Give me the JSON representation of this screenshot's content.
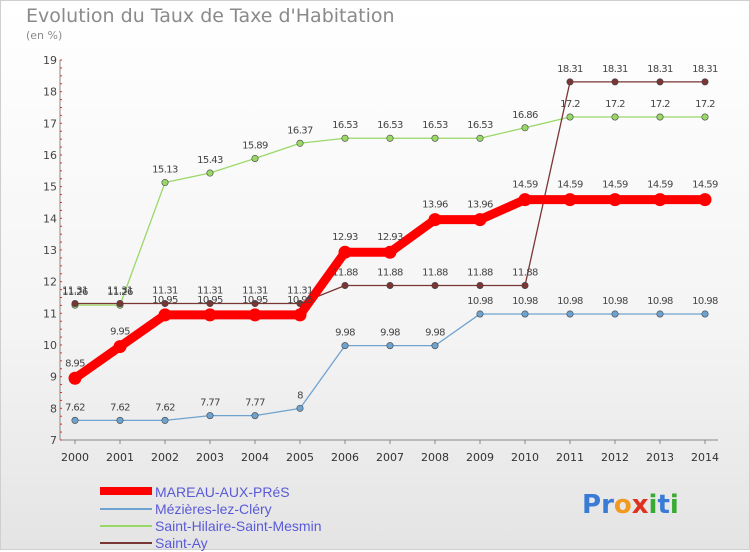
{
  "title": "Evolution du Taux de Taxe d'Habitation",
  "unit_label": "(en %)",
  "logo": {
    "text": "Proxiti",
    "letters": [
      {
        "ch": "P",
        "color": "#3a7bd5"
      },
      {
        "ch": "r",
        "color": "#3a7bd5"
      },
      {
        "ch": "o",
        "color": "#f29a1f"
      },
      {
        "ch": "x",
        "color": "#e0301e"
      },
      {
        "ch": "i",
        "color": "#3aaa35"
      },
      {
        "ch": "t",
        "color": "#3a7bd5"
      },
      {
        "ch": "i",
        "color": "#3aaa35"
      }
    ]
  },
  "chart_data": {
    "type": "line",
    "title": "Evolution du Taux de Taxe d'Habitation",
    "ylabel": "(en %)",
    "ylim": [
      7,
      19
    ],
    "yticks": [
      "7",
      "8",
      "9",
      "10",
      "11",
      "12",
      "13",
      "14",
      "15",
      "16",
      "17",
      "18",
      "19"
    ],
    "categories": [
      "2000",
      "2001",
      "2002",
      "2003",
      "2004",
      "2005",
      "2006",
      "2007",
      "2008",
      "2009",
      "2010",
      "2011",
      "2012",
      "2013",
      "2014"
    ],
    "grid": false,
    "legend_position": "bottom-left",
    "series": [
      {
        "name": "MAREAU-AUX-PRéS",
        "color": "#ff0000",
        "highlight": true,
        "values": [
          8.95,
          9.95,
          10.95,
          10.95,
          10.95,
          10.95,
          12.93,
          12.93,
          13.96,
          13.96,
          14.59,
          14.59,
          14.59,
          14.59,
          14.59
        ],
        "labels": [
          "8.95",
          "9.95",
          "10.95",
          "10.95",
          "10.95",
          "10.95",
          "12.93",
          "12.93",
          "13.96",
          "13.96",
          "14.59",
          "14.59",
          "14.59",
          "14.59",
          "14.59"
        ]
      },
      {
        "name": "Mézières-lez-Cléry",
        "color": "#6fa3cf",
        "highlight": false,
        "values": [
          7.62,
          7.62,
          7.62,
          7.77,
          7.77,
          8,
          9.98,
          9.98,
          9.98,
          10.98,
          10.98,
          10.98,
          10.98,
          10.98,
          10.98
        ],
        "labels": [
          "7.62",
          "7.62",
          "7.62",
          "7.77",
          "7.77",
          "8",
          "9.98",
          "9.98",
          "9.98",
          "10.98",
          "10.98",
          "10.98",
          "10.98",
          "10.98",
          "10.98"
        ]
      },
      {
        "name": "Saint-Hilaire-Saint-Mesmin",
        "color": "#99d866",
        "highlight": false,
        "values": [
          11.26,
          11.26,
          15.13,
          15.43,
          15.89,
          16.37,
          16.53,
          16.53,
          16.53,
          16.53,
          16.86,
          17.2,
          17.2,
          17.2,
          17.2
        ],
        "labels": [
          "11.26",
          "11.26",
          "15.13",
          "15.43",
          "15.89",
          "16.37",
          "16.53",
          "16.53",
          "16.53",
          "16.53",
          "16.86",
          "17.2",
          "17.2",
          "17.2",
          "17.2"
        ]
      },
      {
        "name": "Saint-Ay",
        "color": "#7a3535",
        "highlight": false,
        "values": [
          11.31,
          11.31,
          11.31,
          11.31,
          11.31,
          11.31,
          11.88,
          11.88,
          11.88,
          11.88,
          11.88,
          18.31,
          18.31,
          18.31,
          18.31
        ],
        "labels": [
          "11.31",
          "11.31",
          "11.31",
          "11.31",
          "11.31",
          "11.31",
          "11.88",
          "11.88",
          "11.88",
          "11.88",
          "11.88",
          "18.31",
          "18.31",
          "18.31",
          "18.31"
        ]
      }
    ]
  }
}
